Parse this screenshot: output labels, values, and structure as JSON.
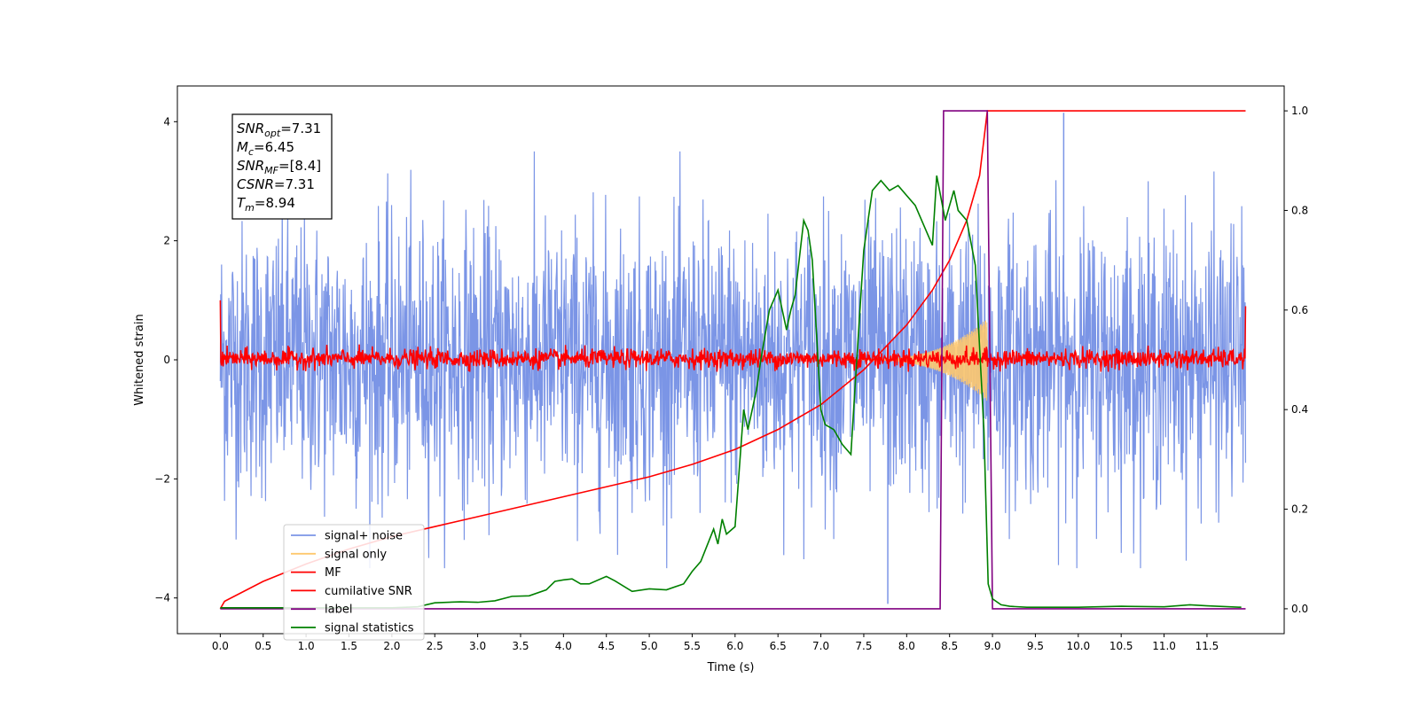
{
  "chart_data": {
    "type": "line",
    "xlabel": "Time (s)",
    "ylabel": "Whitened strain",
    "xlim": [
      -0.5,
      12.4
    ],
    "ylim_left": [
      -4.6,
      4.6
    ],
    "ylim_right": [
      -0.05,
      1.05
    ],
    "x_ticks": [
      0.0,
      0.5,
      1.0,
      1.5,
      2.0,
      2.5,
      3.0,
      3.5,
      4.0,
      4.5,
      5.0,
      5.5,
      6.0,
      6.5,
      7.0,
      7.5,
      8.0,
      8.5,
      9.0,
      9.5,
      10.0,
      10.5,
      11.0,
      11.5
    ],
    "x_tick_labels": [
      "0.0",
      "0.5",
      "1.0",
      "1.5",
      "2.0",
      "2.5",
      "3.0",
      "3.5",
      "4.0",
      "4.5",
      "5.0",
      "5.5",
      "6.0",
      "6.5",
      "7.0",
      "7.5",
      "8.0",
      "8.5",
      "9.0",
      "9.5",
      "10.0",
      "10.5",
      "11.0",
      "11.5"
    ],
    "y_left_ticks": [
      -4,
      -2,
      0,
      2,
      4
    ],
    "y_left_tick_labels": [
      "−4",
      "−2",
      "0",
      "2",
      "4"
    ],
    "y_right_ticks": [
      0.0,
      0.2,
      0.4,
      0.6,
      0.8,
      1.0
    ],
    "y_right_tick_labels": [
      "0.0",
      "0.2",
      "0.4",
      "0.6",
      "0.8",
      "1.0"
    ],
    "legend_position": "lower-left",
    "series": [
      {
        "name": "signal+ noise",
        "color": "#7b95e6",
        "axis": "left",
        "style": "noise",
        "x_range": [
          0,
          11.95
        ],
        "amplitude_range": [
          -3.5,
          3.5
        ],
        "spikes": [
          {
            "x": 7.78,
            "y": -4.1
          },
          {
            "x": 9.83,
            "y": 4.15
          }
        ]
      },
      {
        "name": "signal only",
        "color": "#fec86e",
        "axis": "left",
        "style": "chirp",
        "x_range": [
          7.3,
          8.94
        ],
        "peak_amplitude": 0.7
      },
      {
        "name": "MF",
        "color": "#ff0000",
        "axis": "left",
        "style": "noise",
        "x_range": [
          0,
          11.95
        ],
        "amplitude_range": [
          -0.2,
          0.3
        ],
        "start_value": 1.0,
        "end_value": 0.9
      },
      {
        "name": "cumilative SNR",
        "color": "#ff0000",
        "axis": "right",
        "x": [
          0.0,
          0.05,
          0.5,
          1.0,
          1.5,
          2.0,
          2.5,
          3.0,
          3.5,
          4.0,
          4.5,
          5.0,
          5.5,
          6.0,
          6.5,
          7.0,
          7.5,
          8.0,
          8.3,
          8.5,
          8.7,
          8.85,
          8.94,
          9.0,
          11.95
        ],
        "values": [
          0.0,
          0.015,
          0.055,
          0.09,
          0.12,
          0.145,
          0.165,
          0.185,
          0.205,
          0.225,
          0.245,
          0.265,
          0.29,
          0.32,
          0.36,
          0.41,
          0.48,
          0.57,
          0.64,
          0.7,
          0.78,
          0.87,
          1.0,
          1.0,
          1.0
        ]
      },
      {
        "name": "label",
        "color": "#800080",
        "axis": "right",
        "x": [
          0.0,
          8.39,
          8.43,
          8.94,
          9.0,
          11.95
        ],
        "values": [
          0.0,
          0.0,
          1.0,
          1.0,
          0.0,
          0.0
        ]
      },
      {
        "name": "signal statistics",
        "color": "#008000",
        "axis": "right",
        "x": [
          0.0,
          1.0,
          2.0,
          2.3,
          2.5,
          2.8,
          3.0,
          3.2,
          3.4,
          3.6,
          3.8,
          3.9,
          4.0,
          4.1,
          4.2,
          4.3,
          4.5,
          4.6,
          4.8,
          5.0,
          5.2,
          5.4,
          5.5,
          5.6,
          5.75,
          5.8,
          5.85,
          5.9,
          6.0,
          6.1,
          6.15,
          6.25,
          6.3,
          6.4,
          6.5,
          6.6,
          6.65,
          6.7,
          6.8,
          6.85,
          6.9,
          7.0,
          7.05,
          7.15,
          7.25,
          7.35,
          7.4,
          7.5,
          7.6,
          7.7,
          7.8,
          7.9,
          8.0,
          8.1,
          8.2,
          8.3,
          8.35,
          8.45,
          8.55,
          8.6,
          8.7,
          8.8,
          8.9,
          8.95,
          9.0,
          9.1,
          9.2,
          9.4,
          10.0,
          10.5,
          11.0,
          11.3,
          11.5,
          11.9
        ],
        "values": [
          0.002,
          0.002,
          0.002,
          0.004,
          0.012,
          0.014,
          0.013,
          0.016,
          0.025,
          0.026,
          0.038,
          0.055,
          0.058,
          0.06,
          0.05,
          0.05,
          0.065,
          0.056,
          0.035,
          0.04,
          0.038,
          0.05,
          0.075,
          0.095,
          0.16,
          0.13,
          0.18,
          0.15,
          0.165,
          0.4,
          0.36,
          0.44,
          0.5,
          0.6,
          0.64,
          0.56,
          0.6,
          0.63,
          0.78,
          0.76,
          0.7,
          0.4,
          0.37,
          0.36,
          0.33,
          0.31,
          0.45,
          0.72,
          0.84,
          0.86,
          0.84,
          0.85,
          0.83,
          0.81,
          0.77,
          0.73,
          0.87,
          0.78,
          0.84,
          0.8,
          0.78,
          0.69,
          0.36,
          0.05,
          0.02,
          0.008,
          0.005,
          0.003,
          0.003,
          0.005,
          0.004,
          0.008,
          0.006,
          0.003
        ]
      }
    ],
    "annotation": [
      {
        "name": "SNR",
        "sub": "opt",
        "value": "=7.31"
      },
      {
        "name": "M",
        "sub": "c",
        "value": "=6.45"
      },
      {
        "name": "SNR",
        "sub": "MF",
        "value": "=[8.4]"
      },
      {
        "name": "CSNR",
        "sub": "",
        "value": "=7.31"
      },
      {
        "name": "T",
        "sub": "m",
        "value": "=8.94"
      }
    ]
  }
}
